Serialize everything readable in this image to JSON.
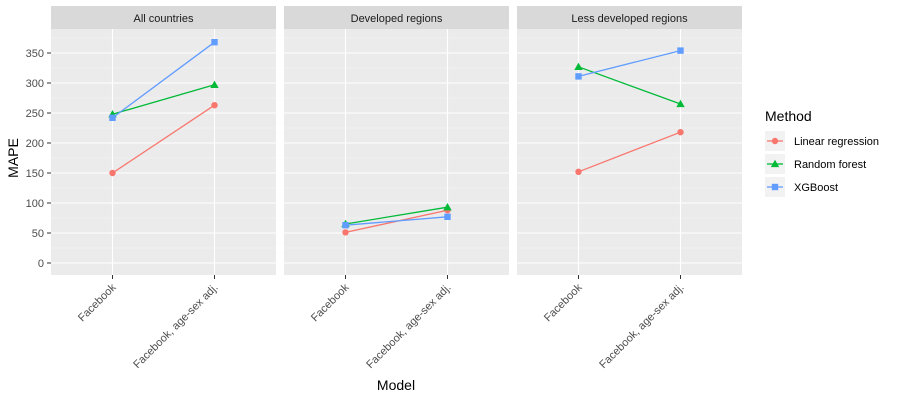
{
  "chart_data": {
    "type": "line",
    "xlabel": "Model",
    "ylabel": "MAPE",
    "categories": [
      "Facebook",
      "Facebook, age-sex adj."
    ],
    "ylim": [
      -20,
      390
    ],
    "yticks": [
      0,
      50,
      100,
      150,
      200,
      250,
      300,
      350
    ],
    "grid": true,
    "legend": {
      "title": "Method",
      "position": "right"
    },
    "facets": [
      {
        "title": "All countries",
        "series": [
          {
            "name": "Linear regression",
            "values": [
              150,
              263
            ]
          },
          {
            "name": "Random forest",
            "values": [
              248,
              297
            ]
          },
          {
            "name": "XGBoost",
            "values": [
              242,
              368
            ]
          }
        ]
      },
      {
        "title": "Developed regions",
        "series": [
          {
            "name": "Linear regression",
            "values": [
              51,
              88
            ]
          },
          {
            "name": "Random forest",
            "values": [
              65,
              93
            ]
          },
          {
            "name": "XGBoost",
            "values": [
              63,
              77
            ]
          }
        ]
      },
      {
        "title": "Less developed regions",
        "series": [
          {
            "name": "Linear regression",
            "values": [
              152,
              218
            ]
          },
          {
            "name": "Random forest",
            "values": [
              327,
              265
            ]
          },
          {
            "name": "XGBoost",
            "values": [
              311,
              354
            ]
          }
        ]
      }
    ],
    "series_styles": [
      {
        "color": "#f8766d",
        "marker": "circle"
      },
      {
        "color": "#00ba38",
        "marker": "triangle"
      },
      {
        "color": "#619cff",
        "marker": "square"
      }
    ]
  }
}
